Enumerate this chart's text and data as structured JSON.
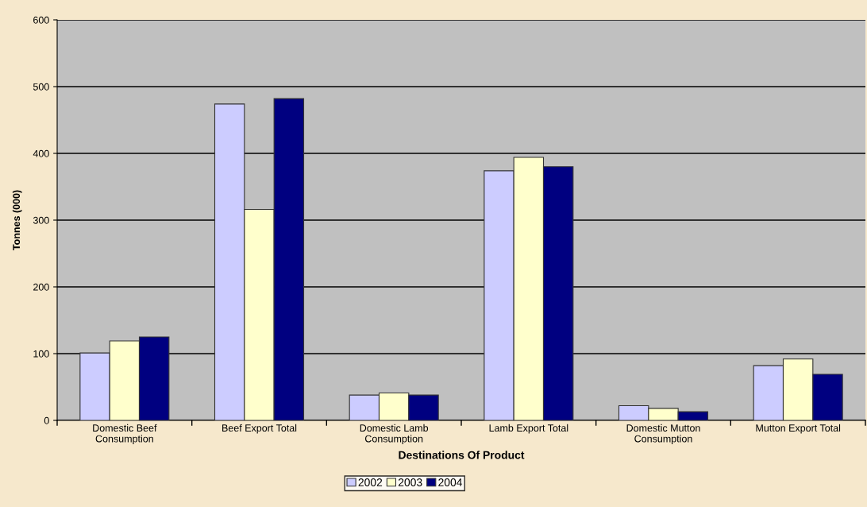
{
  "chart_data": {
    "type": "bar",
    "categories": [
      "Domestic Beef\nConsumption",
      "Beef Export Total",
      "Domestic Lamb\nConsumption",
      "Lamb Export Total",
      "Domestic Mutton\nConsumption",
      "Mutton Export Total"
    ],
    "series": [
      {
        "name": "2002",
        "color": "#ccccff",
        "values": [
          101,
          474,
          38,
          374,
          22,
          82
        ]
      },
      {
        "name": "2003",
        "color": "#ffffcc",
        "values": [
          119,
          316,
          41,
          394,
          18,
          92
        ]
      },
      {
        "name": "2004",
        "color": "#000080",
        "values": [
          125,
          482,
          38,
          380,
          13,
          69
        ]
      }
    ],
    "xlabel": "Destinations Of Product",
    "ylabel": "Tonnes (000)",
    "ylim": [
      0,
      600
    ],
    "yticks": [
      0,
      100,
      200,
      300,
      400,
      500,
      600
    ],
    "grid": "y",
    "legend": "bottom"
  }
}
